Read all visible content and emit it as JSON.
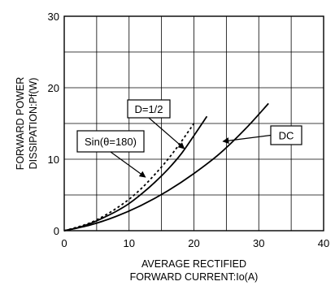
{
  "chart_data": {
    "type": "line",
    "title": "",
    "xlabel": [
      "AVERAGE RECTIFIED",
      "FORWARD CURRENT:Io(A)"
    ],
    "ylabel": [
      "FORWARD POWER",
      "DISSIPATION:Pf(W)"
    ],
    "xlim": [
      0,
      40
    ],
    "ylim": [
      0,
      30
    ],
    "xticks": [
      0,
      10,
      20,
      30,
      40
    ],
    "yticks": [
      0,
      10,
      20,
      30
    ],
    "grid": {
      "x_step": 5,
      "y_step": 5,
      "on": true
    },
    "series": [
      {
        "name": "Sin(θ=180)",
        "style": "dotted",
        "color": "#000000",
        "x": [
          0,
          2,
          4,
          6,
          8,
          10,
          12,
          14,
          16,
          18,
          20
        ],
        "y": [
          0,
          0.5,
          1.1,
          2.0,
          3.1,
          4.4,
          6.0,
          7.9,
          10.0,
          12.4,
          15.0
        ]
      },
      {
        "name": "D=1/2",
        "style": "solid",
        "color": "#000000",
        "x": [
          0,
          2,
          4,
          6,
          8,
          10,
          12,
          14,
          16,
          18,
          20,
          22
        ],
        "y": [
          0,
          0.4,
          1.0,
          1.8,
          2.7,
          3.8,
          5.2,
          6.8,
          8.6,
          10.7,
          13.3,
          16.0
        ]
      },
      {
        "name": "DC",
        "style": "solid",
        "color": "#000000",
        "x": [
          0,
          4,
          8,
          12,
          16,
          20,
          24,
          28,
          31.5
        ],
        "y": [
          0,
          0.8,
          2.0,
          3.6,
          5.6,
          8.0,
          10.8,
          14.3,
          17.8
        ]
      }
    ],
    "annotations": [
      {
        "text": "D=1/2",
        "target_series": "D=1/2",
        "arrow_to": [
          18.5,
          11.5
        ]
      },
      {
        "text": "Sin(θ=180)",
        "target_series": "Sin(θ=180)",
        "arrow_to": [
          12.5,
          7.5
        ]
      },
      {
        "text": "DC",
        "target_series": "DC",
        "arrow_to": [
          24.5,
          12.5
        ]
      }
    ]
  }
}
